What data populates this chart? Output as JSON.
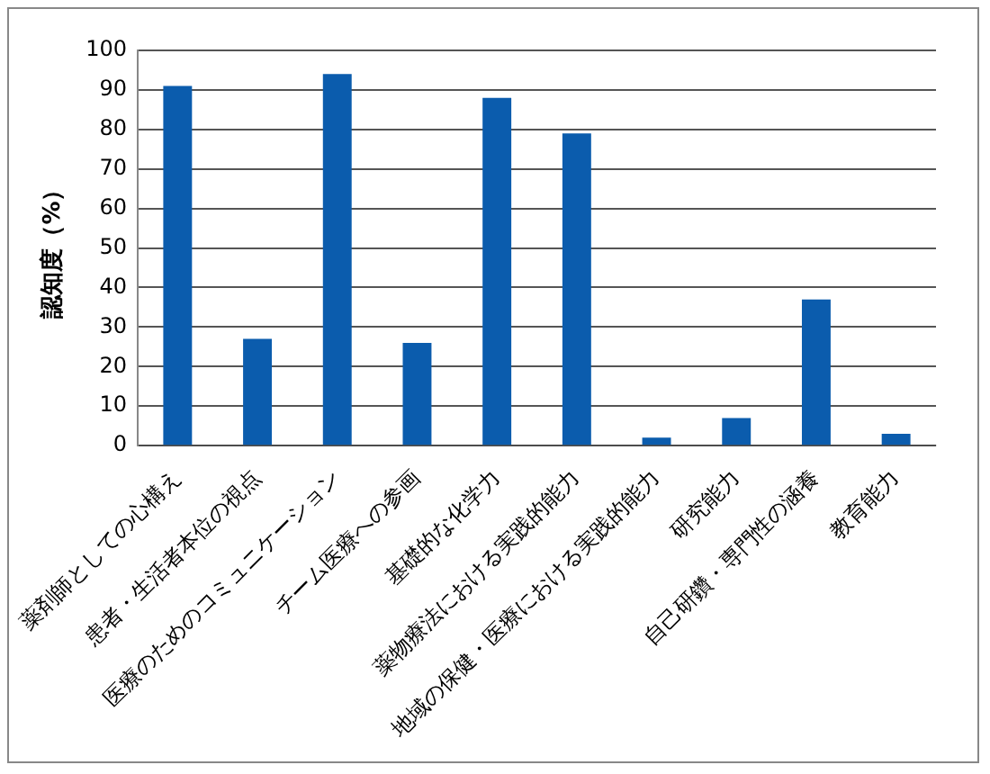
{
  "chart_data": {
    "type": "bar",
    "ylabel": "認知度（%）",
    "categories": [
      "薬剤師としての心構え",
      "患者・生活者本位の視点",
      "医療のためのコミュニケーション",
      "チーム医療への参画",
      "基礎的な化学力",
      "薬物療法における実践的能力",
      "地域の保健・医療における実践的能力",
      "研究能力",
      "自己研鑽・専門性の涵養",
      "教育能力"
    ],
    "values": [
      91,
      27,
      94,
      26,
      88,
      79,
      2,
      7,
      37,
      3
    ],
    "color": "#0b5cad",
    "ylim": [
      0,
      100
    ],
    "yticks": [
      0,
      10,
      20,
      30,
      40,
      50,
      60,
      70,
      80,
      90,
      100
    ],
    "grid": "y",
    "legend": false
  }
}
